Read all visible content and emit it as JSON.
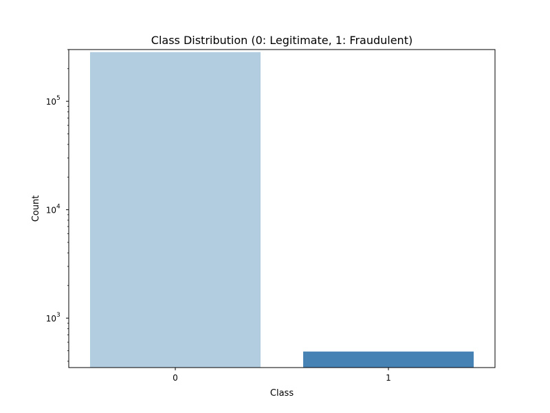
{
  "chart_data": {
    "type": "bar",
    "title": "Class Distribution (0: Legitimate, 1: Fraudulent)",
    "xlabel": "Class",
    "ylabel": "Count",
    "categories": [
      "0",
      "1"
    ],
    "values": [
      284315,
      492
    ],
    "colors": [
      "#b3cde0",
      "#4682b4"
    ],
    "yscale": "log",
    "ylim": [
      350,
      300000
    ],
    "yticks": [
      {
        "value": 1000,
        "base": "10",
        "exp": "3"
      },
      {
        "value": 10000,
        "base": "10",
        "exp": "4"
      },
      {
        "value": 100000,
        "base": "10",
        "exp": "5"
      }
    ],
    "grid": false,
    "legend": "none"
  }
}
